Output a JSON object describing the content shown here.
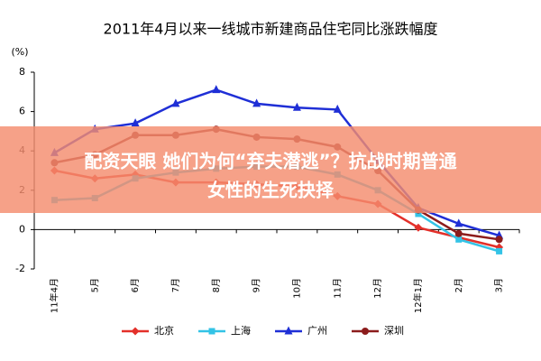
{
  "chart_data": {
    "type": "line",
    "title": "2011年4月以来一线城市新建商品住宅同比涨跌幅度",
    "y_label": "(%)",
    "categories": [
      "11年4月",
      "5月",
      "6月",
      "7月",
      "8月",
      "9月",
      "10月",
      "11月",
      "12月",
      "12年1月",
      "2月",
      "3月"
    ],
    "series": [
      {
        "name": "北京",
        "color": "#e3302a",
        "marker": "diamond",
        "values": [
          3.0,
          2.6,
          2.8,
          2.4,
          2.4,
          2.3,
          2.2,
          1.7,
          1.3,
          0.1,
          -0.4,
          -0.9
        ]
      },
      {
        "name": "上海",
        "color": "#33c3e6",
        "marker": "square",
        "values": [
          1.5,
          1.6,
          2.6,
          2.9,
          3.1,
          3.2,
          3.2,
          2.8,
          2.0,
          0.8,
          -0.5,
          -1.1
        ]
      },
      {
        "name": "广州",
        "color": "#1f2fd6",
        "marker": "triangle",
        "values": [
          3.9,
          5.1,
          5.4,
          6.4,
          7.1,
          6.4,
          6.2,
          6.1,
          3.5,
          1.1,
          0.3,
          -0.3
        ]
      },
      {
        "name": "深圳",
        "color": "#8c1c1c",
        "marker": "circle",
        "values": [
          3.4,
          3.8,
          4.8,
          4.8,
          5.1,
          4.7,
          4.6,
          4.2,
          3.0,
          1.0,
          -0.2,
          -0.5
        ]
      }
    ],
    "ylim": [
      -2,
      8
    ],
    "yticks": [
      -2,
      0,
      2,
      4,
      6,
      8
    ],
    "grid": false,
    "legend": "bottom",
    "annotations": [
      "配资天眼 她们为何“弃夫潜逃”？抗战时期普通",
      "女性的生死抉择"
    ]
  }
}
